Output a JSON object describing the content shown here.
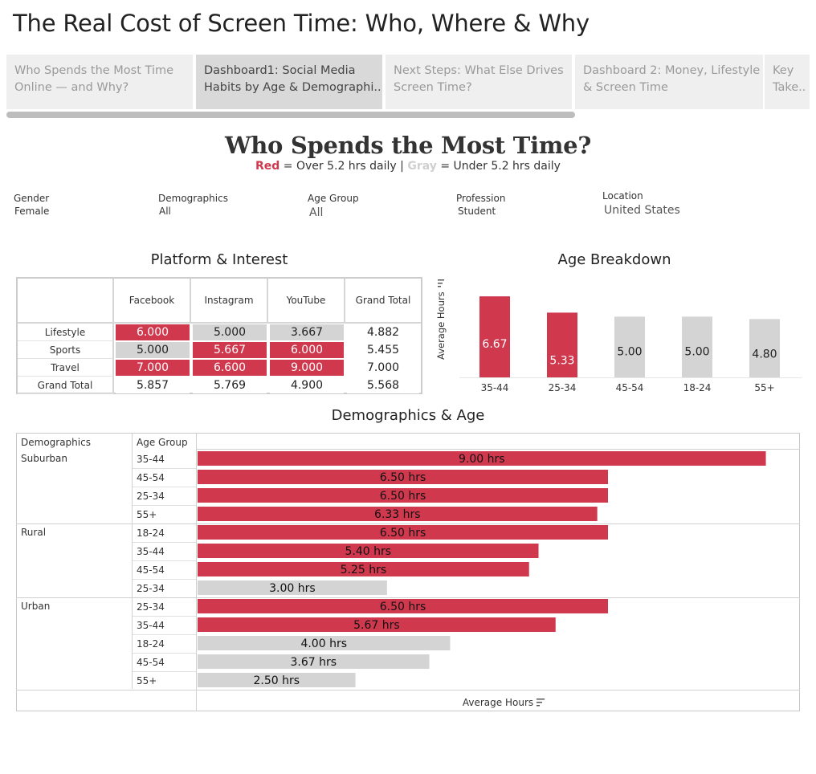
{
  "page_title": "The Real Cost of Screen Time: Who, Where & Why",
  "tabs": [
    {
      "line1": "Who Spends the Most Time",
      "line2": "Online — and Why?",
      "active": false
    },
    {
      "line1": "Dashboard1: Social Media",
      "line2": "Habits by Age & Demographi..",
      "active": true
    },
    {
      "line1": "Next Steps: What Else Drives",
      "line2": "Screen Time?",
      "active": false
    },
    {
      "line1": "Dashboard 2: Money, Lifestyle",
      "line2": "& Screen Time",
      "active": false
    },
    {
      "line1": "Key",
      "line2": "Take..",
      "active": false
    }
  ],
  "dashboard": {
    "title": "Who Spends the Most Time?",
    "subtitle_red": "Red",
    "subtitle_mid": " = Over 5.2 hrs daily | ",
    "subtitle_gray": "Gray",
    "subtitle_end": " = Under 5.2 hrs daily"
  },
  "filters": {
    "gender": {
      "label": "Gender",
      "value": "Female"
    },
    "demographics": {
      "label": "Demographics",
      "value": "All"
    },
    "age_group": {
      "label": "Age Group",
      "value": "All"
    },
    "profession": {
      "label": "Profession",
      "value": "Student"
    },
    "location": {
      "label": "Location",
      "value": "United States"
    }
  },
  "platform_interest": {
    "title": "Platform & Interest",
    "columns": [
      "Facebook",
      "Instagram",
      "YouTube",
      "Grand Total"
    ],
    "rows": [
      {
        "label": "Lifestyle",
        "values": [
          "6.000",
          "5.000",
          "3.667",
          "4.882"
        ],
        "colors": [
          "red",
          "gray",
          "gray",
          "plain"
        ]
      },
      {
        "label": "Sports",
        "values": [
          "5.000",
          "5.667",
          "6.000",
          "5.455"
        ],
        "colors": [
          "gray",
          "red",
          "red",
          "plain"
        ]
      },
      {
        "label": "Travel",
        "values": [
          "7.000",
          "6.600",
          "9.000",
          "7.000"
        ],
        "colors": [
          "red",
          "red",
          "red",
          "plain"
        ]
      },
      {
        "label": "Grand Total",
        "values": [
          "5.857",
          "5.769",
          "4.900",
          "5.568"
        ],
        "colors": [
          "plain",
          "plain",
          "plain",
          "plain"
        ]
      }
    ]
  },
  "age_breakdown": {
    "title": "Age Breakdown",
    "y_title": "Average Hours",
    "max": 7.8
  },
  "demographics_age": {
    "title": "Demographics & Age",
    "col_demographics": "Demographics",
    "col_age": "Age Group",
    "x_title": "Average Hours",
    "max": 9.4
  },
  "colors": {
    "red": "#d0384e",
    "gray": "#d4d4d4"
  },
  "chart_data": [
    {
      "type": "bar",
      "title": "Age Breakdown",
      "ylabel": "Average Hours",
      "categories": [
        "35-44",
        "25-34",
        "45-54",
        "18-24",
        "55+"
      ],
      "values": [
        6.67,
        5.33,
        5.0,
        5.0,
        4.8
      ],
      "labels": [
        "6.67",
        "5.33",
        "5.00",
        "5.00",
        "4.80"
      ],
      "colors": [
        "red",
        "red",
        "gray",
        "gray",
        "gray"
      ]
    },
    {
      "type": "bar",
      "title": "Demographics & Age",
      "xlabel": "Average Hours",
      "groups": [
        {
          "name": "Suburban",
          "rows": [
            {
              "age": "35-44",
              "value": 9.0,
              "label": "9.00 hrs",
              "color": "red"
            },
            {
              "age": "45-54",
              "value": 6.5,
              "label": "6.50 hrs",
              "color": "red"
            },
            {
              "age": "25-34",
              "value": 6.5,
              "label": "6.50 hrs",
              "color": "red"
            },
            {
              "age": "55+",
              "value": 6.33,
              "label": "6.33 hrs",
              "color": "red"
            }
          ]
        },
        {
          "name": "Rural",
          "rows": [
            {
              "age": "18-24",
              "value": 6.5,
              "label": "6.50 hrs",
              "color": "red"
            },
            {
              "age": "35-44",
              "value": 5.4,
              "label": "5.40 hrs",
              "color": "red"
            },
            {
              "age": "45-54",
              "value": 5.25,
              "label": "5.25 hrs",
              "color": "red"
            },
            {
              "age": "25-34",
              "value": 3.0,
              "label": "3.00 hrs",
              "color": "gray"
            }
          ]
        },
        {
          "name": "Urban",
          "rows": [
            {
              "age": "25-34",
              "value": 6.5,
              "label": "6.50 hrs",
              "color": "red"
            },
            {
              "age": "35-44",
              "value": 5.67,
              "label": "5.67 hrs",
              "color": "red"
            },
            {
              "age": "18-24",
              "value": 4.0,
              "label": "4.00 hrs",
              "color": "gray"
            },
            {
              "age": "45-54",
              "value": 3.67,
              "label": "3.67 hrs",
              "color": "gray"
            },
            {
              "age": "55+",
              "value": 2.5,
              "label": "2.50 hrs",
              "color": "gray"
            }
          ]
        }
      ]
    }
  ]
}
